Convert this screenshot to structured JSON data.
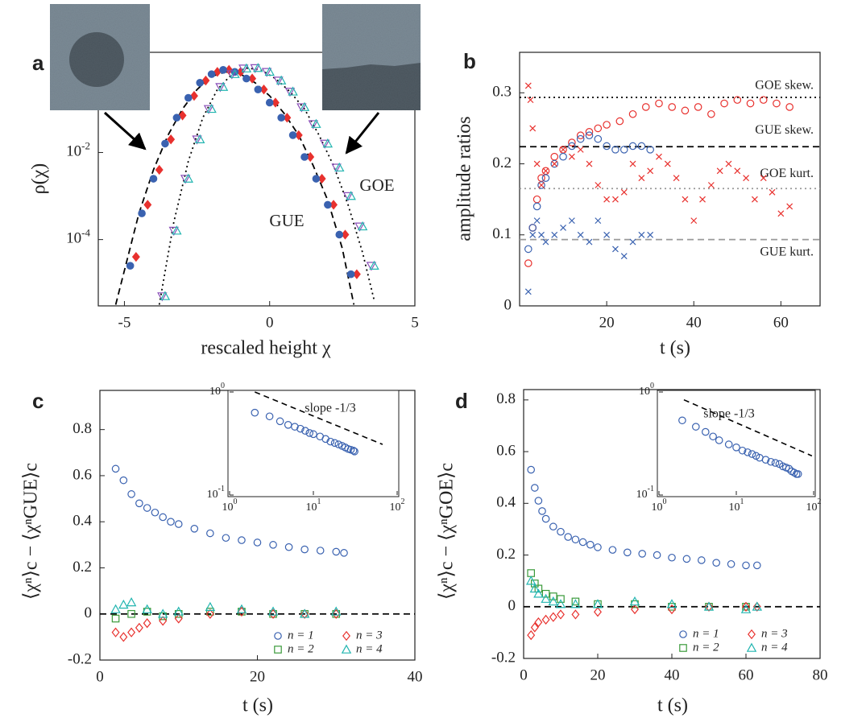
{
  "chart_data": [
    {
      "type": "scatter",
      "panel": "a",
      "x_label": "rescaled height χ",
      "y_label": "ρ(χ)",
      "yscale": "log",
      "xlim": [
        -5.9,
        5
      ],
      "ylim": [
        3e-06,
        2
      ],
      "xticks": [
        -5,
        0,
        5
      ],
      "yticks": [
        {
          "value": 0.01,
          "label": "10",
          "exponent": "-2"
        },
        {
          "value": 0.0001,
          "label": "10",
          "exponent": "-4"
        }
      ],
      "annotations": [
        "GOE",
        "GUE"
      ],
      "series": [
        {
          "color": "#000000",
          "linestyle": "dashed",
          "x": [
            -5.3,
            -4.5,
            -4,
            -3.5,
            -3,
            -2.5,
            -2,
            -1.5,
            -1,
            -0.5,
            0,
            0.5,
            1,
            1.5,
            2,
            2.5,
            2.9
          ],
          "values": [
            3.2e-06,
            0.0004,
            0.004,
            0.025,
            0.1,
            0.28,
            0.56,
            0.71,
            0.63,
            0.4,
            0.2,
            0.079,
            0.025,
            0.005,
            0.0008,
            6.3e-05,
            3.2e-06
          ]
        },
        {
          "color": "#000000",
          "linestyle": "dotted",
          "x": [
            -3.8,
            -3.3,
            -2.8,
            -2.3,
            -1.8,
            -1.3,
            -0.8,
            -0.3,
            0.2,
            0.7,
            1.2,
            1.7,
            2.2,
            2.7,
            3.2,
            3.6
          ],
          "values": [
            3.2e-06,
            0.00025,
            0.0063,
            0.063,
            0.28,
            0.63,
            0.87,
            0.79,
            0.5,
            0.25,
            0.1,
            0.025,
            0.005,
            0.00063,
            5e-05,
            4e-06
          ]
        },
        {
          "color": "#e8312e",
          "marker": "diamond",
          "filled": true,
          "x": [
            -4.6,
            -4.2,
            -3.8,
            -3.4,
            -3,
            -2.6,
            -2.2,
            -1.8,
            -1.4,
            -1,
            -0.6,
            -0.2,
            0.2,
            0.6,
            1,
            1.4,
            1.8,
            2.2,
            2.6,
            3
          ],
          "values": [
            4e-05,
            0.00063,
            0.004,
            0.02,
            0.071,
            0.2,
            0.45,
            0.71,
            0.79,
            0.71,
            0.5,
            0.28,
            0.14,
            0.063,
            0.025,
            0.0079,
            0.0025,
            0.00063,
            0.00013,
            1.6e-05
          ]
        },
        {
          "color": "#3a62b0",
          "marker": "circle",
          "filled": true,
          "x": [
            -4.8,
            -4.4,
            -4,
            -3.6,
            -3.2,
            -2.8,
            -2.4,
            -2,
            -1.6,
            -1.2,
            -0.8,
            -0.4,
            0,
            0.4,
            0.8,
            1.2,
            1.6,
            2,
            2.4,
            2.8
          ],
          "values": [
            2.5e-05,
            0.0004,
            0.0025,
            0.016,
            0.063,
            0.18,
            0.4,
            0.63,
            0.79,
            0.71,
            0.5,
            0.28,
            0.14,
            0.063,
            0.025,
            0.0079,
            0.0025,
            0.00063,
            0.00013,
            1.6e-05
          ]
        },
        {
          "color": "#8a4fb8",
          "marker": "triangle-down",
          "x": [
            -3.7,
            -3.3,
            -2.9,
            -2.5,
            -2.1,
            -1.7,
            -1.3,
            -0.9,
            -0.5,
            -0.1,
            0.3,
            0.7,
            1.1,
            1.5,
            1.9,
            2.3,
            2.7,
            3.1,
            3.5
          ],
          "values": [
            5e-06,
            0.00016,
            0.0025,
            0.02,
            0.1,
            0.32,
            0.63,
            0.85,
            0.87,
            0.71,
            0.45,
            0.25,
            0.11,
            0.045,
            0.016,
            0.0045,
            0.001,
            0.0002,
            2.5e-05
          ]
        },
        {
          "color": "#22b5b0",
          "marker": "triangle-up",
          "x": [
            -3.6,
            -3.2,
            -2.8,
            -2.4,
            -2,
            -1.6,
            -1.2,
            -0.8,
            -0.4,
            0,
            0.4,
            0.8,
            1.2,
            1.6,
            2,
            2.4,
            2.8,
            3.2,
            3.6
          ],
          "values": [
            5e-06,
            0.00016,
            0.0025,
            0.02,
            0.1,
            0.32,
            0.63,
            0.85,
            0.87,
            0.71,
            0.45,
            0.25,
            0.11,
            0.045,
            0.016,
            0.0045,
            0.001,
            0.0002,
            2.5e-05
          ]
        }
      ]
    },
    {
      "type": "scatter",
      "panel": "b",
      "x_label": "t (s)",
      "y_label": "amplitude ratios",
      "xlim": [
        0,
        69
      ],
      "ylim": [
        0,
        0.357
      ],
      "xticks": [
        20,
        40,
        60
      ],
      "yticks": [
        0,
        0.1,
        0.2,
        0.3
      ],
      "reference_lines": [
        {
          "value": 0.2935,
          "label": "GOE skew.",
          "color": "#000000",
          "style": "dotted"
        },
        {
          "value": 0.2241,
          "label": "GUE skew.",
          "color": "#000000",
          "style": "dashed"
        },
        {
          "value": 0.1652,
          "label": "GOE kurt.",
          "color": "#999999",
          "style": "dotted"
        },
        {
          "value": 0.0934,
          "label": "GUE kurt.",
          "color": "#999999",
          "style": "dashed"
        }
      ],
      "series": [
        {
          "color": "#e8312e",
          "marker": "circle",
          "x": [
            2,
            3,
            4,
            5,
            6,
            8,
            10,
            12,
            14,
            16,
            18,
            20,
            23,
            26,
            29,
            32,
            35,
            38,
            41,
            44,
            47,
            50,
            53,
            56,
            59,
            62
          ],
          "values": [
            0.06,
            0.11,
            0.15,
            0.18,
            0.19,
            0.21,
            0.22,
            0.23,
            0.24,
            0.245,
            0.25,
            0.255,
            0.26,
            0.27,
            0.28,
            0.285,
            0.28,
            0.275,
            0.28,
            0.27,
            0.285,
            0.29,
            0.285,
            0.29,
            0.285,
            0.28
          ]
        },
        {
          "color": "#3a62b0",
          "marker": "circle",
          "x": [
            2,
            3,
            4,
            5,
            6,
            8,
            10,
            12,
            14,
            16,
            18,
            20,
            22,
            24,
            26,
            28,
            30
          ],
          "values": [
            0.08,
            0.11,
            0.14,
            0.17,
            0.18,
            0.2,
            0.21,
            0.225,
            0.235,
            0.24,
            0.235,
            0.225,
            0.22,
            0.22,
            0.225,
            0.225,
            0.22
          ]
        },
        {
          "color": "#e8312e",
          "marker": "cross",
          "x": [
            2,
            2.5,
            3,
            4,
            5,
            6,
            8,
            10,
            12,
            14,
            16,
            18,
            20,
            22,
            24,
            26,
            28,
            30,
            32,
            34,
            36,
            38,
            40,
            42,
            44,
            46,
            48,
            50,
            52,
            54,
            56,
            58,
            60,
            62
          ],
          "values": [
            0.31,
            0.29,
            0.25,
            0.2,
            0.17,
            0.19,
            0.2,
            0.22,
            0.21,
            0.22,
            0.2,
            0.17,
            0.15,
            0.15,
            0.16,
            0.2,
            0.18,
            0.19,
            0.21,
            0.2,
            0.18,
            0.15,
            0.12,
            0.15,
            0.17,
            0.19,
            0.2,
            0.19,
            0.18,
            0.15,
            0.18,
            0.16,
            0.13,
            0.14
          ]
        },
        {
          "color": "#3a62b0",
          "marker": "cross",
          "x": [
            2,
            3,
            4,
            5,
            6,
            8,
            10,
            12,
            14,
            16,
            18,
            20,
            22,
            24,
            26,
            28,
            30
          ],
          "values": [
            0.02,
            0.1,
            0.12,
            0.1,
            0.09,
            0.1,
            0.11,
            0.12,
            0.1,
            0.09,
            0.12,
            0.1,
            0.08,
            0.07,
            0.09,
            0.1,
            0.1
          ]
        }
      ]
    },
    {
      "type": "scatter",
      "panel": "c",
      "x_label": "t (s)",
      "y_label": "⟨χⁿ⟩c − ⟨χⁿGUE⟩c",
      "xlim": [
        0,
        40
      ],
      "ylim": [
        -0.2,
        0.97
      ],
      "xticks": [
        0,
        20,
        40
      ],
      "yticks": [
        -0.2,
        0,
        0.2,
        0.4,
        0.6,
        0.8
      ],
      "reference_lines": [
        {
          "value": 0,
          "color": "#000000",
          "style": "dashed"
        }
      ],
      "legend": "lower right",
      "series": [
        {
          "name": "n = 1",
          "color": "#3a62b0",
          "marker": "circle",
          "x": [
            2,
            3,
            4,
            5,
            6,
            7,
            8,
            9,
            10,
            12,
            14,
            16,
            18,
            20,
            22,
            24,
            26,
            28,
            30,
            31
          ],
          "values": [
            0.63,
            0.58,
            0.52,
            0.48,
            0.46,
            0.44,
            0.42,
            0.4,
            0.39,
            0.37,
            0.35,
            0.33,
            0.32,
            0.31,
            0.3,
            0.29,
            0.28,
            0.275,
            0.27,
            0.265
          ]
        },
        {
          "name": "n = 2",
          "color": "#3a9a3a",
          "marker": "square",
          "x": [
            2,
            4,
            6,
            8,
            10,
            14,
            18,
            22,
            26,
            30
          ],
          "values": [
            -0.02,
            0,
            0.01,
            -0.01,
            0,
            0.01,
            0.01,
            0,
            0,
            0
          ]
        },
        {
          "name": "n = 3",
          "color": "#e8312e",
          "marker": "diamond",
          "x": [
            2,
            3,
            4,
            5,
            6,
            8,
            10,
            14,
            18,
            22,
            26,
            30
          ],
          "values": [
            -0.08,
            -0.1,
            -0.08,
            -0.06,
            -0.04,
            -0.03,
            -0.02,
            0,
            0.01,
            0,
            0,
            0
          ]
        },
        {
          "name": "n = 4",
          "color": "#22b5b0",
          "marker": "triangle-up",
          "x": [
            2,
            3,
            4,
            6,
            8,
            10,
            14,
            18,
            22,
            26,
            30
          ],
          "values": [
            0.02,
            0.04,
            0.05,
            0.02,
            0,
            0.01,
            0.03,
            0.02,
            0.01,
            0,
            0.01
          ]
        }
      ],
      "inset": {
        "xscale": "log",
        "yscale": "log",
        "xlim": [
          1,
          100
        ],
        "ylim": [
          0.1,
          1
        ],
        "xticks": [
          {
            "value": 1,
            "label": "10",
            "exponent": "0"
          },
          {
            "value": 10,
            "label": "10",
            "exponent": "1"
          },
          {
            "value": 100,
            "label": "10",
            "exponent": "2"
          }
        ],
        "yticks": [
          {
            "value": 1,
            "label": "10",
            "exponent": "0"
          },
          {
            "value": 0.1,
            "label": "10",
            "exponent": "-1"
          }
        ],
        "annotation": "slope -1/3",
        "slope_line": {
          "x": [
            2,
            67
          ],
          "values": [
            1,
            0.31
          ]
        }
      }
    },
    {
      "type": "scatter",
      "panel": "d",
      "x_label": "t (s)",
      "y_label": "⟨χⁿ⟩c − ⟨χⁿGOE⟩c",
      "xlim": [
        0,
        80
      ],
      "ylim": [
        -0.2,
        0.84
      ],
      "xticks": [
        0,
        20,
        40,
        60,
        80
      ],
      "yticks": [
        -0.2,
        0,
        0.2,
        0.4,
        0.6,
        0.8
      ],
      "reference_lines": [
        {
          "value": 0,
          "color": "#000000",
          "style": "dashed"
        }
      ],
      "legend": "lower right",
      "series": [
        {
          "name": "n = 1",
          "color": "#3a62b0",
          "marker": "circle",
          "x": [
            2,
            3,
            4,
            5,
            6,
            8,
            10,
            12,
            14,
            16,
            18,
            20,
            24,
            28,
            32,
            36,
            40,
            44,
            48,
            52,
            56,
            60,
            63
          ],
          "values": [
            0.53,
            0.46,
            0.41,
            0.37,
            0.34,
            0.31,
            0.29,
            0.27,
            0.26,
            0.25,
            0.24,
            0.23,
            0.22,
            0.21,
            0.205,
            0.2,
            0.19,
            0.185,
            0.18,
            0.17,
            0.165,
            0.16,
            0.16
          ]
        },
        {
          "name": "n = 2",
          "color": "#3a9a3a",
          "marker": "square",
          "x": [
            2,
            3,
            4,
            6,
            8,
            10,
            14,
            20,
            30,
            40,
            50,
            60
          ],
          "values": [
            0.13,
            0.09,
            0.07,
            0.05,
            0.04,
            0.03,
            0.02,
            0.01,
            0.01,
            0,
            0,
            0
          ]
        },
        {
          "name": "n = 3",
          "color": "#e8312e",
          "marker": "diamond",
          "x": [
            2,
            3,
            4,
            6,
            8,
            10,
            14,
            20,
            30,
            40,
            50,
            60,
            63
          ],
          "values": [
            -0.11,
            -0.08,
            -0.06,
            -0.05,
            -0.04,
            -0.03,
            -0.03,
            -0.02,
            -0.01,
            -0.01,
            0,
            0,
            0
          ]
        },
        {
          "name": "n = 4",
          "color": "#22b5b0",
          "marker": "triangle-up",
          "x": [
            2,
            3,
            4,
            6,
            8,
            10,
            14,
            20,
            30,
            40,
            50,
            60,
            63
          ],
          "values": [
            0.1,
            0.07,
            0.05,
            0.03,
            0.02,
            0.01,
            0.01,
            0.01,
            0.02,
            0.01,
            0,
            -0.01,
            0
          ]
        }
      ],
      "inset": {
        "xscale": "log",
        "yscale": "log",
        "xlim": [
          1,
          100
        ],
        "ylim": [
          0.1,
          1
        ],
        "xticks": [
          {
            "value": 1,
            "label": "10",
            "exponent": "0"
          },
          {
            "value": 10,
            "label": "10",
            "exponent": "1"
          },
          {
            "value": 100,
            "label": "10",
            "exponent": "2"
          }
        ],
        "yticks": [
          {
            "value": 1,
            "label": "10",
            "exponent": "0"
          },
          {
            "value": 0.1,
            "label": "10",
            "exponent": "-1"
          }
        ],
        "annotation": "slope -1/3",
        "slope_line": {
          "x": [
            2.1,
            95
          ],
          "values": [
            0.84,
            0.24
          ]
        }
      }
    }
  ]
}
